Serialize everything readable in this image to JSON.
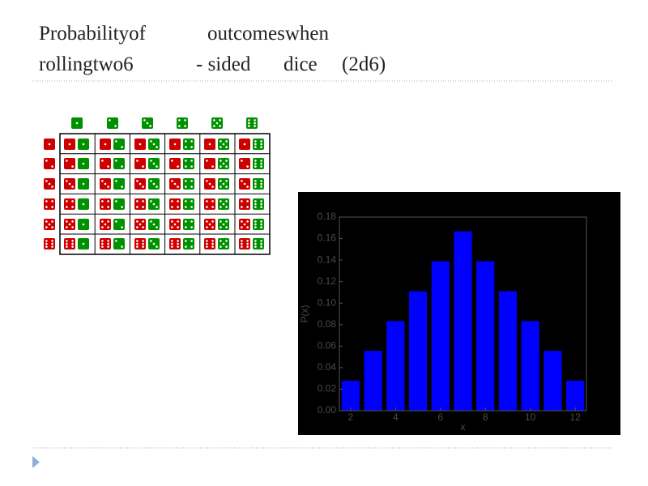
{
  "slide": {
    "title": [
      "Probabilityof",
      "outcomeswhen",
      "rollingtwo6",
      "- sided",
      "dice",
      "(2d6)"
    ]
  },
  "chart_data": {
    "type": "bar",
    "xlabel": "x",
    "ylabel": "P(x)",
    "x": [
      2,
      3,
      4,
      5,
      6,
      7,
      8,
      9,
      10,
      11,
      12
    ],
    "values": [
      0.0278,
      0.0556,
      0.0833,
      0.1111,
      0.1389,
      0.1667,
      0.1389,
      0.1111,
      0.0833,
      0.0556,
      0.0278
    ],
    "color": "#0000ff",
    "background": "#000000",
    "xlim": [
      1.5,
      12.5
    ],
    "xticks": [
      2,
      4,
      6,
      8,
      10,
      12
    ],
    "ylim": [
      0,
      0.18
    ],
    "yticks": [
      {
        "value": 0,
        "label": "0.00"
      },
      {
        "value": 0.02,
        "label": "0.02"
      },
      {
        "value": 0.04,
        "label": "0.04"
      },
      {
        "value": 0.06,
        "label": "0.06"
      },
      {
        "value": 0.08,
        "label": "0.08"
      },
      {
        "value": 0.1,
        "label": "0.10"
      },
      {
        "value": 0.12,
        "label": "0.12"
      },
      {
        "value": 0.14,
        "label": "0.14"
      },
      {
        "value": 0.16,
        "label": "0.16"
      },
      {
        "value": 0.18,
        "label": "0.18"
      }
    ]
  }
}
